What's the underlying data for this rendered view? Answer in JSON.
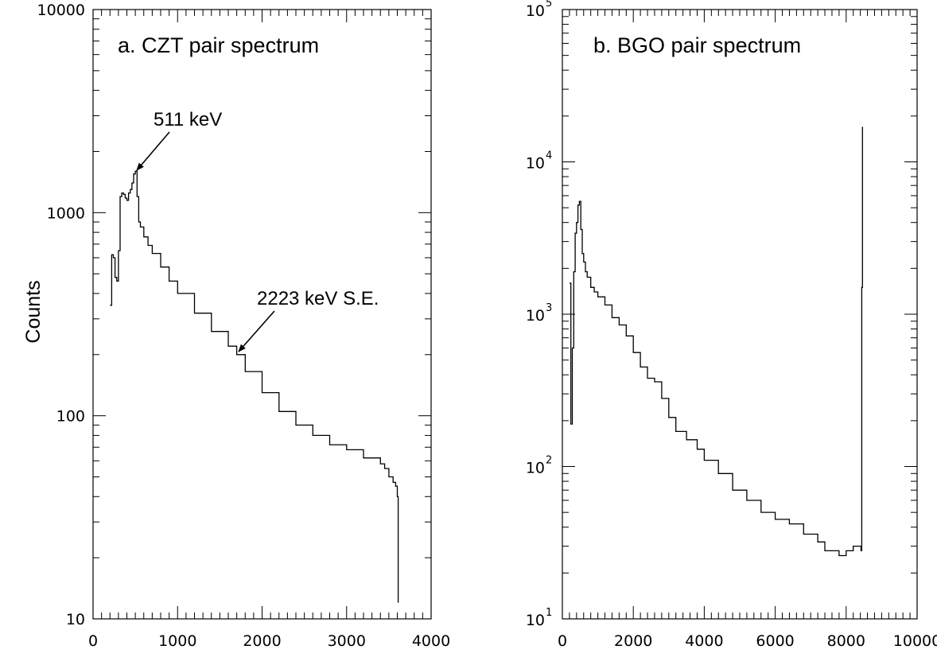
{
  "chart_data": [
    {
      "type": "line",
      "title": "a. CZT pair spectrum",
      "ylabel": "Counts",
      "xlabel": "",
      "xlim": [
        0,
        4000
      ],
      "ylim": [
        10,
        10000
      ],
      "yscale": "log",
      "x_ticks": [
        0,
        1000,
        2000,
        3000,
        4000
      ],
      "y_ticks": [
        10,
        100,
        1000,
        10000
      ],
      "y_tick_style": "plain",
      "series": [
        {
          "x": [
            200,
            220,
            240,
            260,
            280,
            300,
            320,
            340,
            360,
            380,
            400,
            420,
            440,
            460,
            480,
            500,
            520,
            540,
            560,
            600,
            650,
            700,
            800,
            900,
            1000,
            1200,
            1400,
            1600,
            1700,
            1800,
            2000,
            2200,
            2400,
            2600,
            2800,
            3000,
            3200,
            3300,
            3400,
            3450,
            3500,
            3550,
            3580,
            3600,
            3610
          ],
          "values": [
            350,
            620,
            600,
            480,
            460,
            650,
            1200,
            1250,
            1230,
            1180,
            1150,
            1250,
            1300,
            1400,
            1550,
            1600,
            1200,
            900,
            850,
            760,
            690,
            630,
            540,
            460,
            400,
            320,
            260,
            220,
            200,
            165,
            130,
            105,
            90,
            80,
            72,
            68,
            62,
            62,
            58,
            55,
            50,
            47,
            45,
            40,
            12
          ]
        }
      ],
      "annotations": [
        {
          "text": "511 keV",
          "x": 511,
          "y": 1600
        },
        {
          "text": "2223 keV S.E.",
          "x": 1712,
          "y": 210
        }
      ]
    },
    {
      "type": "line",
      "title": "b. BGO pair spectrum",
      "xlabel": "",
      "ylabel": "",
      "xlim": [
        0,
        10000
      ],
      "ylim": [
        10,
        100000
      ],
      "yscale": "log",
      "x_ticks": [
        0,
        2000,
        4000,
        6000,
        8000,
        10000
      ],
      "y_ticks": [
        10,
        100,
        1000,
        10000,
        100000
      ],
      "y_tick_style": "exponent",
      "series": [
        {
          "x": [
            200,
            240,
            280,
            320,
            360,
            400,
            440,
            480,
            520,
            560,
            600,
            650,
            700,
            800,
            900,
            1000,
            1200,
            1400,
            1600,
            1800,
            2000,
            2200,
            2400,
            2600,
            2800,
            3000,
            3200,
            3500,
            3800,
            4000,
            4400,
            4800,
            5200,
            5600,
            6000,
            6400,
            6800,
            7200,
            7400,
            7600,
            7800,
            8000,
            8200,
            8400,
            8420,
            8440,
            8460
          ],
          "values": [
            1600,
            190,
            600,
            1900,
            3400,
            4000,
            5200,
            5500,
            3600,
            2500,
            2200,
            1900,
            1750,
            1500,
            1400,
            1300,
            1150,
            950,
            850,
            720,
            560,
            450,
            380,
            360,
            280,
            210,
            170,
            150,
            130,
            110,
            90,
            70,
            60,
            50,
            45,
            42,
            36,
            32,
            28,
            28,
            26,
            28,
            30,
            30,
            28,
            1500,
            17000
          ]
        }
      ],
      "annotations": []
    }
  ]
}
